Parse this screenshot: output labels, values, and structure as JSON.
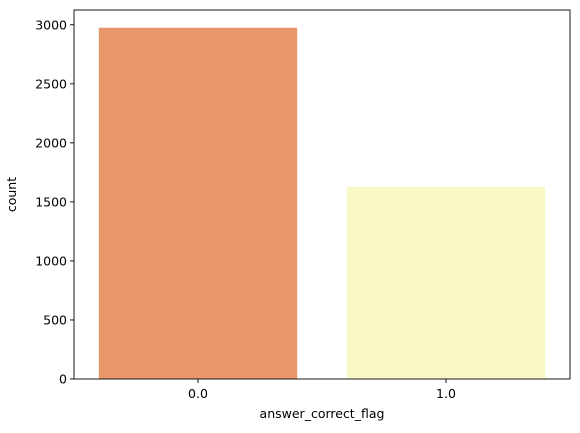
{
  "chart_data": {
    "type": "bar",
    "title": "",
    "xlabel": "answer_correct_flag",
    "ylabel": "count",
    "categories": [
      "0.0",
      "1.0"
    ],
    "values": [
      2975,
      1628
    ],
    "colors": [
      "#e8976a",
      "#f8f8c6"
    ],
    "ylim": [
      0,
      3125
    ],
    "yticks": [
      0,
      500,
      1000,
      1500,
      2000,
      2500,
      3000
    ],
    "grid": false,
    "legend": "none"
  }
}
